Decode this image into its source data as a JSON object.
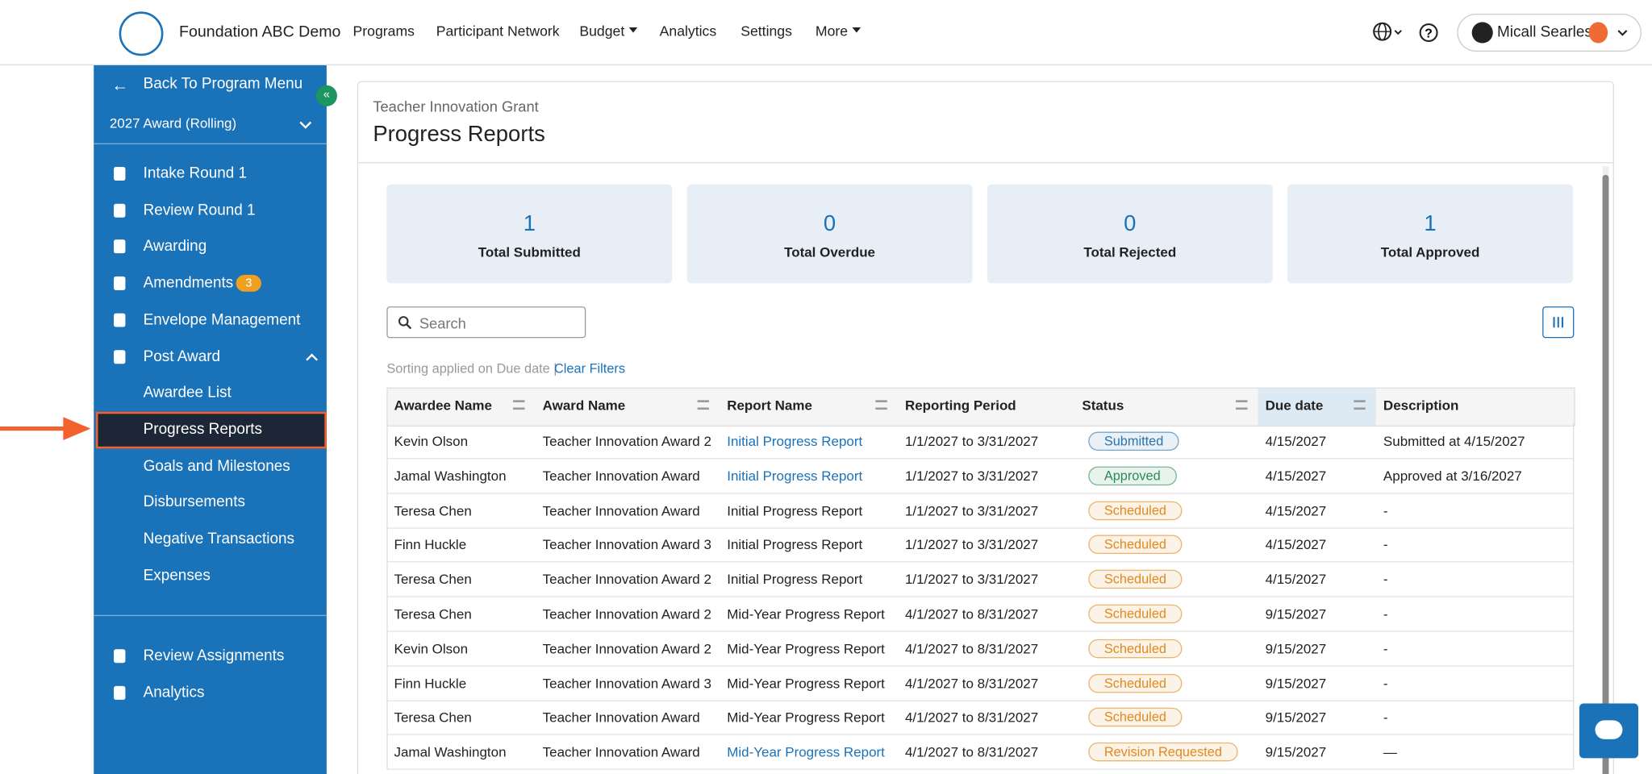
{
  "header": {
    "org": "Foundation ABC Demo",
    "nav": [
      {
        "label": "Programs"
      },
      {
        "label": "Participant Network"
      },
      {
        "label": "Budget",
        "dropdown": true
      },
      {
        "label": "Analytics"
      },
      {
        "label": "Settings"
      },
      {
        "label": "More",
        "dropdown": true
      }
    ],
    "user": "Micall Searles"
  },
  "sidebar": {
    "back": "Back To Program Menu",
    "award": "2027 Award (Rolling)",
    "items": [
      {
        "label": "Intake Round 1"
      },
      {
        "label": "Review Round 1"
      },
      {
        "label": "Awarding"
      },
      {
        "label": "Amendments",
        "badge": "3"
      },
      {
        "label": "Envelope Management"
      }
    ],
    "post_award": "Post Award",
    "sub_items": [
      "Awardee List",
      "Progress Reports",
      "Goals and Milestones",
      "Disbursements",
      "Negative Transactions",
      "Expenses"
    ],
    "active_sub_item": 1,
    "bottom": [
      "Review Assignments",
      "Analytics"
    ]
  },
  "page": {
    "breadcrumb": "Teacher Innovation Grant",
    "title": "Progress Reports"
  },
  "stats": [
    {
      "value": "1",
      "label": "Total Submitted"
    },
    {
      "value": "0",
      "label": "Total Overdue"
    },
    {
      "value": "0",
      "label": "Total Rejected"
    },
    {
      "value": "1",
      "label": "Total Approved"
    }
  ],
  "search_placeholder": "Search",
  "sorting_note": "Sorting applied on Due date |",
  "clear_filters": "Clear Filters",
  "table": {
    "columns": [
      "Awardee Name",
      "Award Name",
      "Report Name",
      "Reporting Period",
      "Status",
      "Due date",
      "Description"
    ],
    "rows": [
      [
        "Kevin Olson",
        "Teacher Innovation Award 2",
        "Initial Progress Report",
        "1/1/2027 to 3/31/2027",
        "Submitted",
        "4/15/2027",
        "Submitted at 4/15/2027"
      ],
      [
        "Jamal Washington",
        "Teacher Innovation Award",
        "Initial Progress Report",
        "1/1/2027 to 3/31/2027",
        "Approved",
        "4/15/2027",
        "Approved at 3/16/2027"
      ],
      [
        "Teresa Chen",
        "Teacher Innovation Award",
        "Initial Progress Report",
        "1/1/2027 to 3/31/2027",
        "Scheduled",
        "4/15/2027",
        "-"
      ],
      [
        "Finn Huckle",
        "Teacher Innovation Award 3",
        "Initial Progress Report",
        "1/1/2027 to 3/31/2027",
        "Scheduled",
        "4/15/2027",
        "-"
      ],
      [
        "Teresa Chen",
        "Teacher Innovation Award 2",
        "Initial Progress Report",
        "1/1/2027 to 3/31/2027",
        "Scheduled",
        "4/15/2027",
        "-"
      ],
      [
        "Teresa Chen",
        "Teacher Innovation Award 2",
        "Mid-Year Progress Report",
        "4/1/2027 to 8/31/2027",
        "Scheduled",
        "9/15/2027",
        "-"
      ],
      [
        "Kevin Olson",
        "Teacher Innovation Award 2",
        "Mid-Year Progress Report",
        "4/1/2027 to 8/31/2027",
        "Scheduled",
        "9/15/2027",
        "-"
      ],
      [
        "Finn Huckle",
        "Teacher Innovation Award 3",
        "Mid-Year Progress Report",
        "4/1/2027 to 8/31/2027",
        "Scheduled",
        "9/15/2027",
        "-"
      ],
      [
        "Teresa Chen",
        "Teacher Innovation Award",
        "Mid-Year Progress Report",
        "4/1/2027 to 8/31/2027",
        "Scheduled",
        "9/15/2027",
        "-"
      ],
      [
        "Jamal Washington",
        "Teacher Innovation Award",
        "Mid-Year Progress Report",
        "4/1/2027 to 8/31/2027",
        "Revision Requested",
        "9/15/2027",
        "—"
      ]
    ],
    "linked": [
      true,
      true,
      false,
      false,
      false,
      false,
      false,
      false,
      false,
      true
    ],
    "status_colors": [
      "#2a73ad",
      "#2b8a57",
      "#e08a1e",
      "#e08a1e",
      "#e08a1e",
      "#e08a1e",
      "#e08a1e",
      "#e08a1e",
      "#e08a1e",
      "#e08a1e"
    ],
    "filter_columns": [
      0,
      1,
      2,
      4,
      5
    ]
  }
}
